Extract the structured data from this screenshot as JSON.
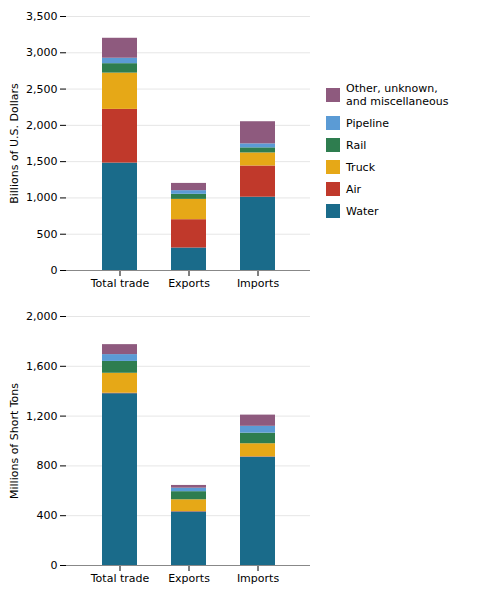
{
  "chart_data": [
    {
      "type": "bar",
      "stacked": true,
      "grid": true,
      "legend": "right",
      "ylabel": "Billions of U.S. Dollars",
      "categories": [
        "Total trade",
        "Exports",
        "Imports"
      ],
      "ylim": [
        0,
        3500
      ],
      "yticks": [
        0,
        500,
        {
          "value": 1000,
          "label": "1,000"
        },
        {
          "value": 1500,
          "label": "1,500"
        },
        {
          "value": 2000,
          "label": "2,000"
        },
        {
          "value": 2500,
          "label": "2,500"
        },
        {
          "value": 3000,
          "label": "3,000"
        },
        {
          "value": 3500,
          "label": "3,500"
        }
      ],
      "series": [
        {
          "name": "Water",
          "color": "#1a6b8a",
          "values": [
            1480,
            310,
            1010
          ]
        },
        {
          "name": "Air",
          "color": "#c0392b",
          "values": [
            740,
            390,
            430
          ]
        },
        {
          "name": "Truck",
          "color": "#e6a817",
          "values": [
            500,
            280,
            180
          ]
        },
        {
          "name": "Rail",
          "color": "#2e7d4f",
          "values": [
            130,
            70,
            70
          ]
        },
        {
          "name": "Pipeline",
          "color": "#5b9bd5",
          "values": [
            75,
            50,
            55
          ]
        },
        {
          "name": "Other, unknown,\nand miscellaneous",
          "color": "#8e5a7e",
          "values": [
            275,
            100,
            305
          ]
        }
      ]
    },
    {
      "type": "bar",
      "stacked": true,
      "grid": true,
      "ylabel": "Millions of Short Tons",
      "categories": [
        "Total trade",
        "Exports",
        "Imports"
      ],
      "ylim": [
        0,
        2000
      ],
      "yticks": [
        0,
        400,
        800,
        {
          "value": 1200,
          "label": "1,200"
        },
        {
          "value": 1600,
          "label": "1,600"
        },
        {
          "value": 2000,
          "label": "2,000"
        }
      ],
      "series": [
        {
          "name": "Water",
          "color": "#1a6b8a",
          "values": [
            1380,
            430,
            870
          ]
        },
        {
          "name": "Air",
          "color": "#c0392b",
          "values": [
            4,
            3,
            3
          ]
        },
        {
          "name": "Truck",
          "color": "#e6a817",
          "values": [
            160,
            95,
            105
          ]
        },
        {
          "name": "Rail",
          "color": "#2e7d4f",
          "values": [
            95,
            65,
            85
          ]
        },
        {
          "name": "Pipeline",
          "color": "#5b9bd5",
          "values": [
            55,
            28,
            55
          ]
        },
        {
          "name": "Other, unknown,\nand miscellaneous",
          "color": "#8e5a7e",
          "values": [
            80,
            22,
            90
          ]
        }
      ]
    }
  ]
}
